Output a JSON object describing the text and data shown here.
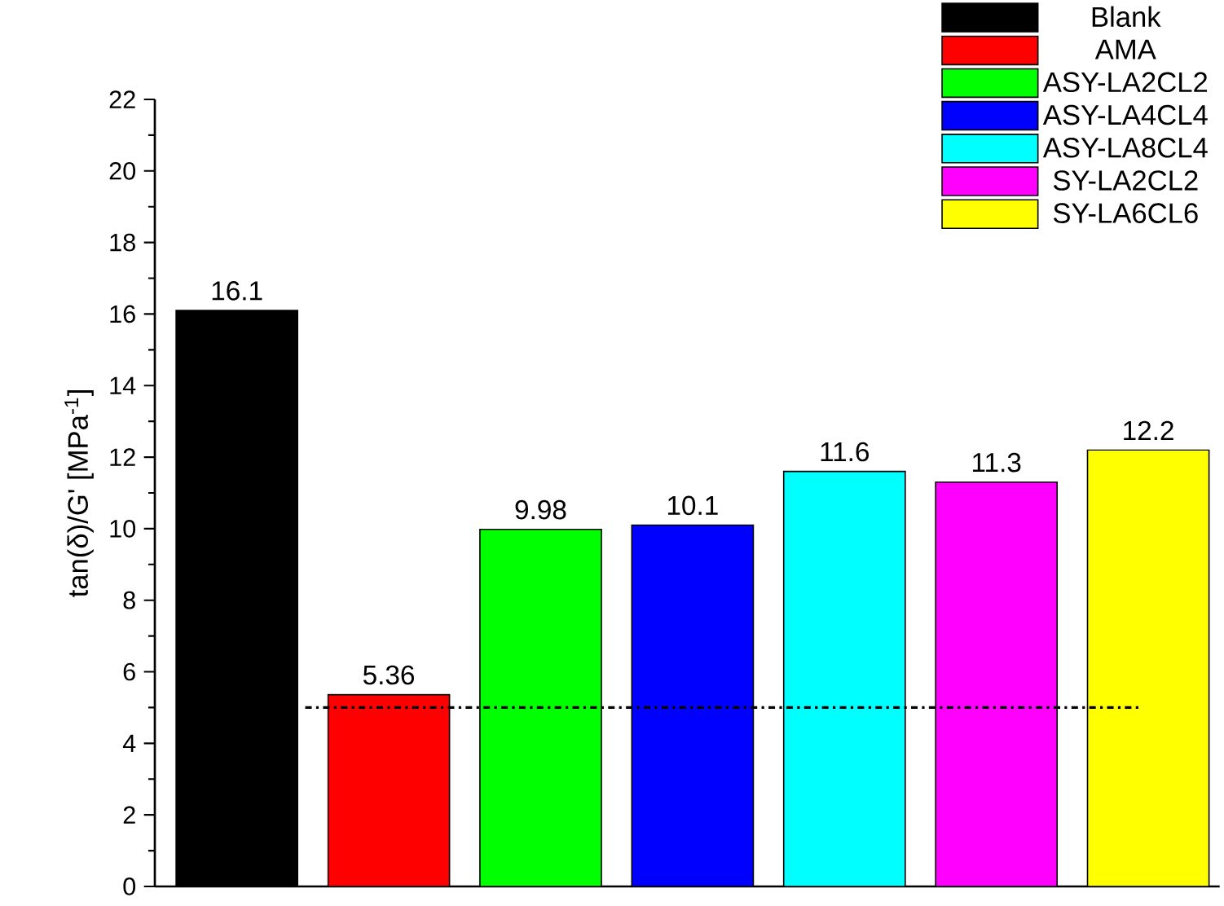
{
  "chart_data": {
    "type": "bar",
    "ylabel": "tan(δ)/G' [MPa$^{-1}$]",
    "categories": [
      null,
      null,
      null,
      null,
      null,
      null,
      null
    ],
    "series": [
      {
        "name": "Blank",
        "color": "#000000",
        "values": [
          16.1,
          null,
          null,
          null,
          null,
          null,
          null
        ]
      },
      {
        "name": "AMA",
        "color": "#ff0000",
        "values": [
          null,
          5.36,
          null,
          null,
          null,
          null,
          null
        ]
      },
      {
        "name": "ASY-LA2CL2",
        "color": "#00ff00",
        "values": [
          null,
          null,
          9.98,
          null,
          null,
          null,
          null
        ]
      },
      {
        "name": "ASY-LA4CL4",
        "color": "#0000ff",
        "values": [
          null,
          null,
          null,
          10.1,
          null,
          null,
          null
        ]
      },
      {
        "name": "ASY-LA8CL4",
        "color": "#00ffff",
        "values": [
          null,
          null,
          null,
          null,
          11.6,
          null,
          null
        ]
      },
      {
        "name": "SY-LA2CL2",
        "color": "#ff00ff",
        "values": [
          null,
          null,
          null,
          null,
          null,
          11.3,
          null
        ]
      },
      {
        "name": "SY-LA6CL6",
        "color": "#ffff00",
        "values": [
          null,
          null,
          null,
          null,
          null,
          null,
          12.2
        ]
      }
    ],
    "ylim": [
      0,
      22
    ],
    "yticks": [
      0,
      2,
      4,
      6,
      8,
      10,
      12,
      14,
      16,
      18,
      20,
      22
    ],
    "ref_lines": [
      {
        "axis": "y",
        "value": 5,
        "color": "#000000",
        "line_style": "dashdot"
      }
    ],
    "data_labels": true,
    "legend": "top right",
    "tick_labels": "y"
  }
}
